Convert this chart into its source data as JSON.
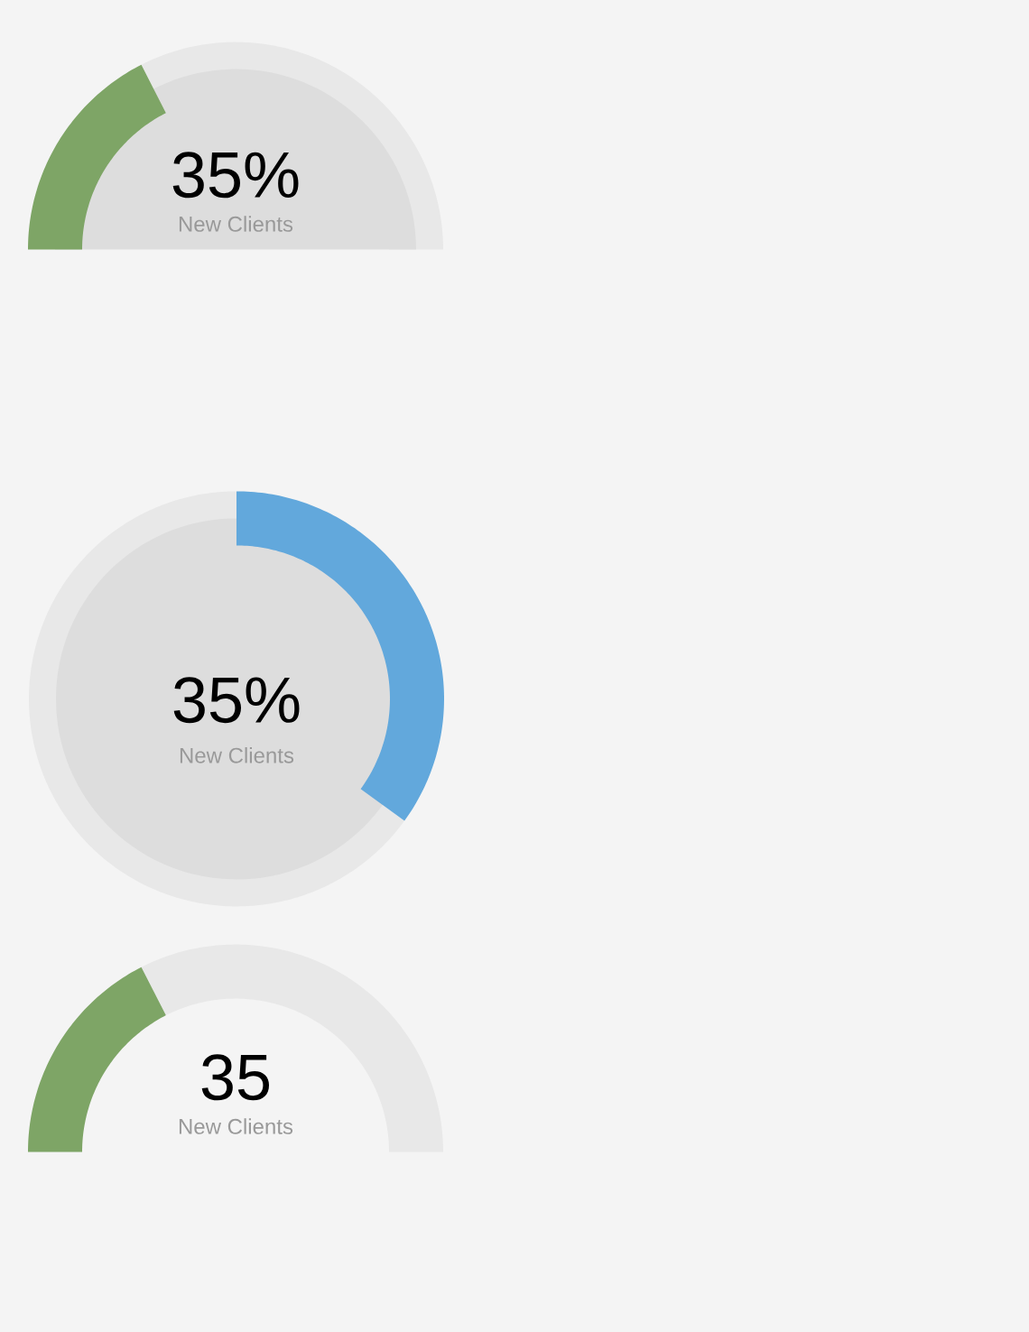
{
  "chart_data": [
    {
      "type": "donut",
      "title": "35%",
      "subtitle": "New Clients",
      "categories": [
        null,
        null
      ],
      "values": [
        35,
        65
      ],
      "colors": [
        "#7ea566",
        "#e8e8e8"
      ]
    },
    {
      "type": "donut",
      "title": "35%",
      "subtitle": "New Clients",
      "categories": [
        null,
        null
      ],
      "values": [
        35,
        65
      ],
      "colors": [
        "#62a8dc",
        "#e8e8e8"
      ]
    },
    {
      "type": "donut",
      "title": "35",
      "subtitle": "New Clients",
      "categories": [
        null,
        null
      ],
      "values": [
        35,
        65
      ],
      "colors": [
        "#7ea566",
        "#e8e8e8"
      ]
    }
  ]
}
